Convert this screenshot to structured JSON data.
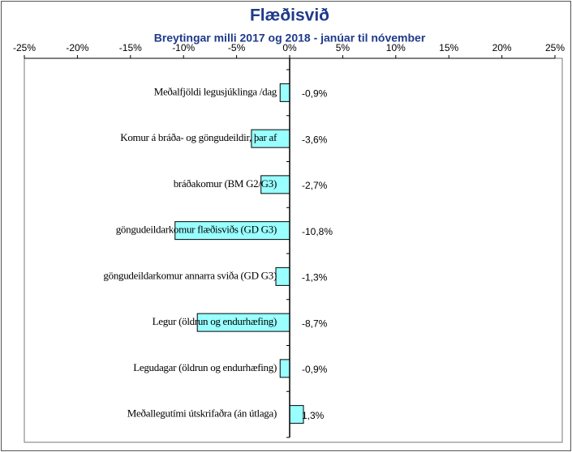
{
  "chart_data": {
    "type": "barh",
    "title": "Flæðisvið",
    "subtitle": "Breytingar milli 2017 og 2018 - janúar til nóvember",
    "categories": [
      "Meðalfjöldi legusjúklinga /dag",
      "Komur á bráða- og göngudeildir, þar af",
      "bráðakomur (BM G2/G3)",
      "göngudeildarkomur flæðisviðs (GD G3)",
      "göngudeildarkomur annarra sviða (GD G3)",
      "Legur (öldrun og endurhæfing)",
      "Legudagar (öldrun og endurhæfing)",
      "Meðallegutími útskrifaðra (án útlaga)"
    ],
    "values": [
      -0.9,
      -3.6,
      -2.7,
      -10.8,
      -1.3,
      -8.7,
      -0.9,
      1.3
    ],
    "value_labels": [
      "-0,9%",
      "-3,6%",
      "-2,7%",
      "-10,8%",
      "-1,3%",
      "-8,7%",
      "-0,9%",
      "1,3%"
    ],
    "color": "#99ffff",
    "xlim": [
      -25,
      25
    ],
    "xticks": [
      {
        "value": -25,
        "label": "-25%"
      },
      {
        "value": -20,
        "label": "-20%"
      },
      {
        "value": -15,
        "label": "-15%"
      },
      {
        "value": -10,
        "label": "-10%"
      },
      {
        "value": -5,
        "label": "-5%"
      },
      {
        "value": 0,
        "label": "0%"
      },
      {
        "value": 5,
        "label": "5%"
      },
      {
        "value": 10,
        "label": "10%"
      },
      {
        "value": 15,
        "label": "15%"
      },
      {
        "value": 20,
        "label": "20%"
      },
      {
        "value": 25,
        "label": "25%"
      }
    ]
  }
}
